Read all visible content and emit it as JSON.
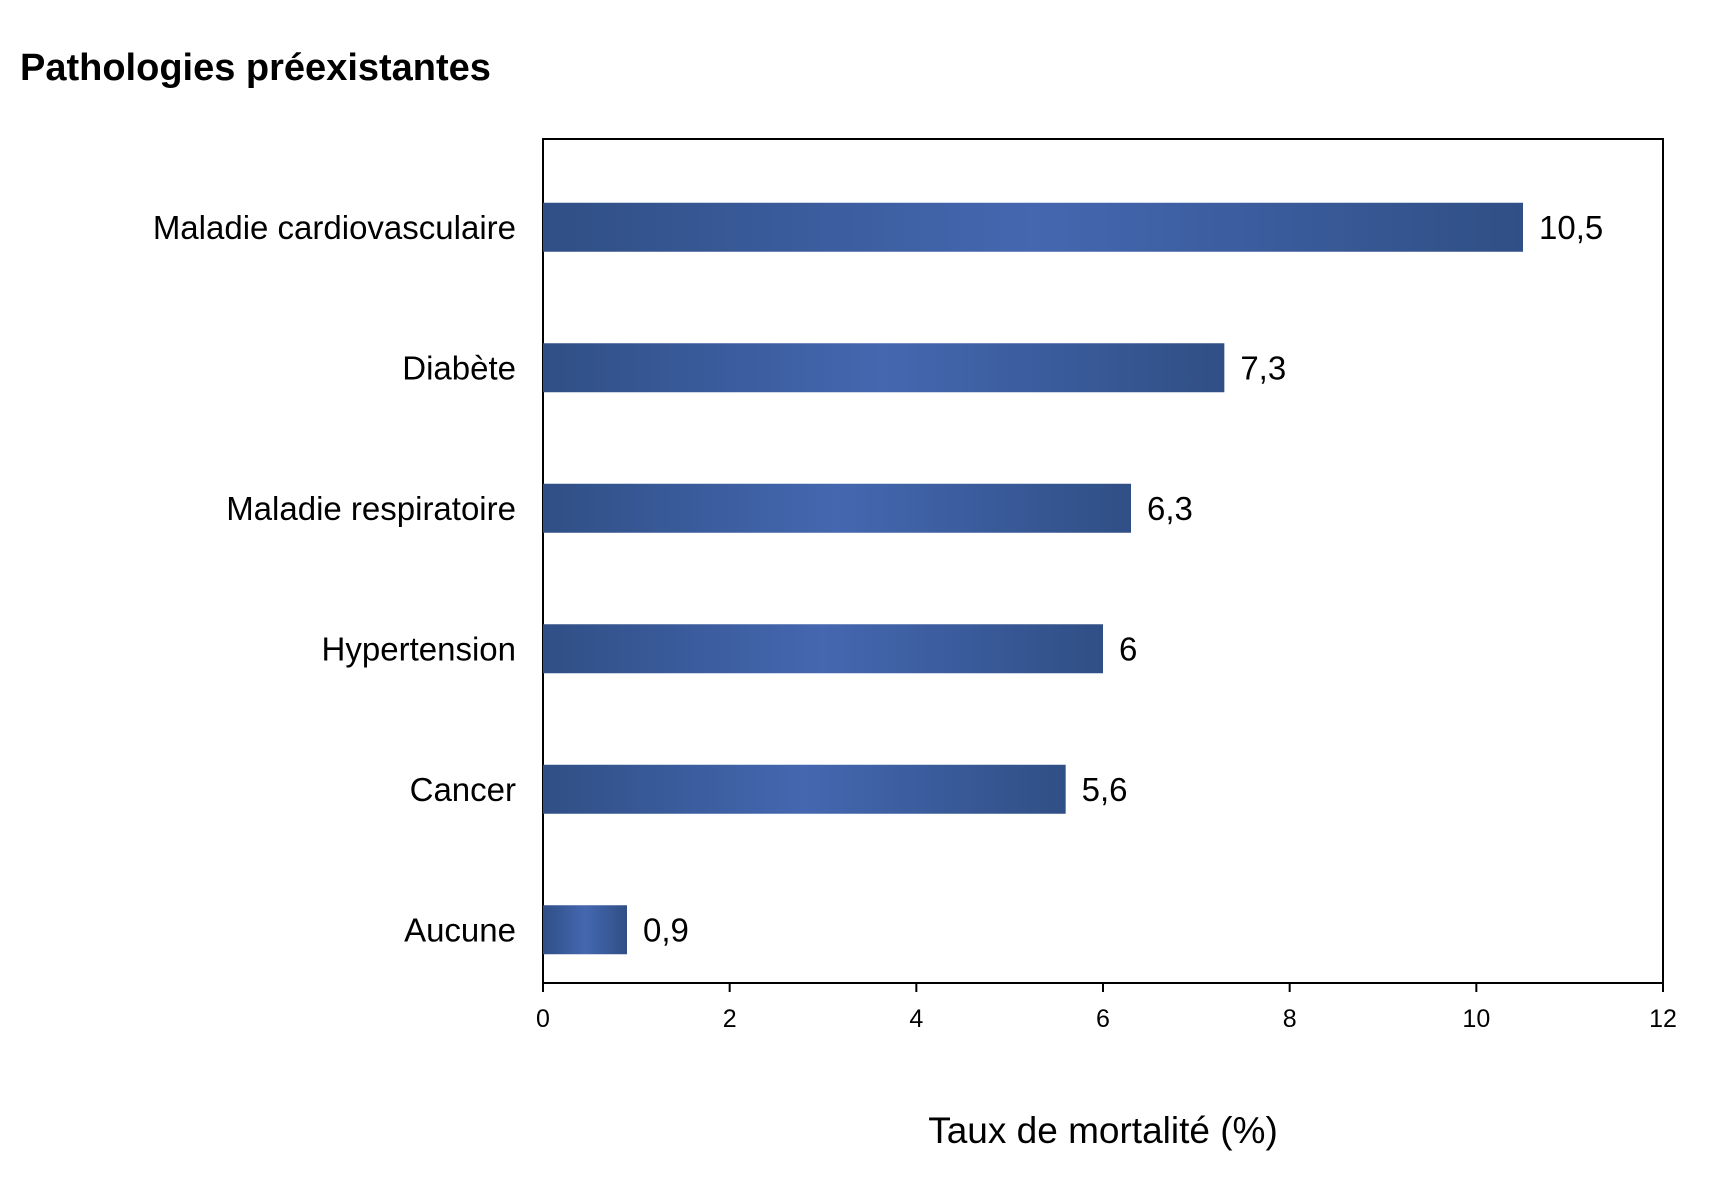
{
  "chart_data": {
    "type": "bar",
    "orientation": "horizontal",
    "title": "Pathologies préexistantes",
    "xlabel": "Taux de mortalité (%)",
    "ylabel": "",
    "categories": [
      "Maladie cardiovasculaire",
      "Diabète",
      "Maladie respiratoire",
      "Hypertension",
      "Cancer",
      "Aucune"
    ],
    "values": [
      10.5,
      7.3,
      6.3,
      6,
      5.6,
      0.9
    ],
    "value_labels": [
      "10,5",
      "7,3",
      "6,3",
      "6",
      "5,6",
      "0,9"
    ],
    "xlim": [
      0,
      12
    ],
    "xticks": [
      0,
      2,
      4,
      6,
      8,
      10,
      12
    ],
    "xtick_labels": [
      "0",
      "2",
      "4",
      "6",
      "8",
      "10",
      "12"
    ],
    "grid": false,
    "legend": "none",
    "colors": {
      "bar_dark": "#304f86",
      "bar_light": "#4467b0",
      "axis": "#000000"
    }
  }
}
